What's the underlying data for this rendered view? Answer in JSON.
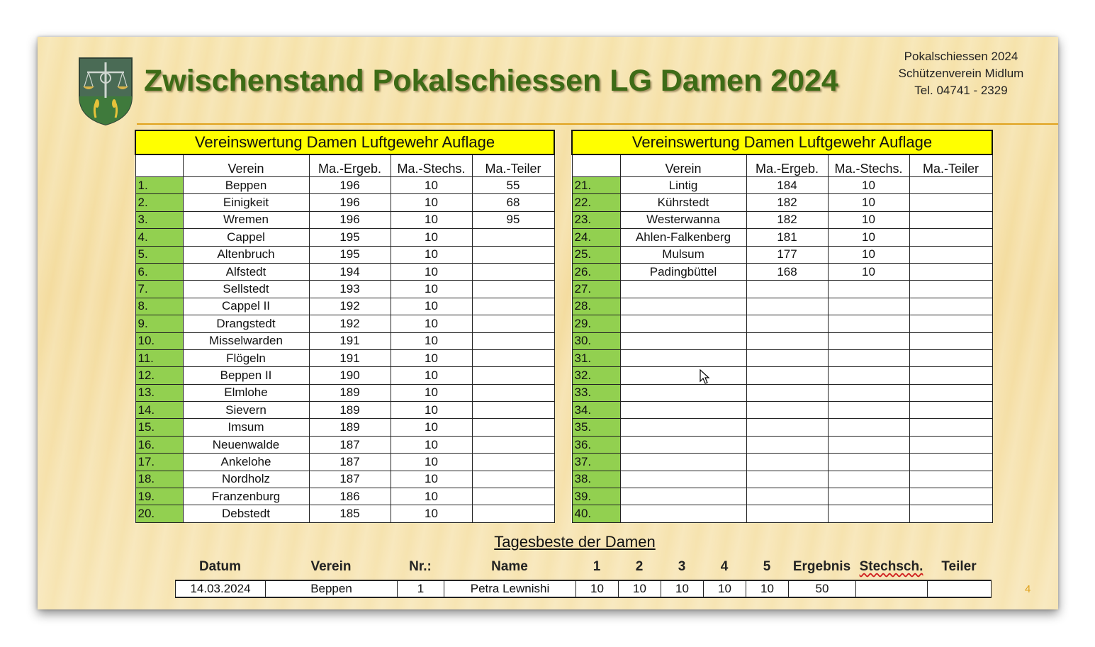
{
  "header": {
    "title": "Zwischenstand Pokalschiessen LG Damen 2024",
    "info_lines": [
      "Pokalschiessen 2024",
      "Schützenverein Midlum",
      "Tel. 04741 - 2329"
    ]
  },
  "table_left": {
    "title": "Vereinswertung Damen Luftgewehr Auflage",
    "columns": [
      "",
      "Verein",
      "Ma.-Ergeb.",
      "Ma.-Stechs.",
      "Ma.-Teiler"
    ],
    "rows": [
      [
        "1.",
        "Beppen",
        "196",
        "10",
        "55"
      ],
      [
        "2.",
        "Einigkeit",
        "196",
        "10",
        "68"
      ],
      [
        "3.",
        "Wremen",
        "196",
        "10",
        "95"
      ],
      [
        "4.",
        "Cappel",
        "195",
        "10",
        ""
      ],
      [
        "5.",
        "Altenbruch",
        "195",
        "10",
        ""
      ],
      [
        "6.",
        "Alfstedt",
        "194",
        "10",
        ""
      ],
      [
        "7.",
        "Sellstedt",
        "193",
        "10",
        ""
      ],
      [
        "8.",
        "Cappel II",
        "192",
        "10",
        ""
      ],
      [
        "9.",
        "Drangstedt",
        "192",
        "10",
        ""
      ],
      [
        "10.",
        "Misselwarden",
        "191",
        "10",
        ""
      ],
      [
        "11.",
        "Flögeln",
        "191",
        "10",
        ""
      ],
      [
        "12.",
        "Beppen II",
        "190",
        "10",
        ""
      ],
      [
        "13.",
        "Elmlohe",
        "189",
        "10",
        ""
      ],
      [
        "14.",
        "Sievern",
        "189",
        "10",
        ""
      ],
      [
        "15.",
        "Imsum",
        "189",
        "10",
        ""
      ],
      [
        "16.",
        "Neuenwalde",
        "187",
        "10",
        ""
      ],
      [
        "17.",
        "Ankelohe",
        "187",
        "10",
        ""
      ],
      [
        "18.",
        "Nordholz",
        "187",
        "10",
        ""
      ],
      [
        "19.",
        "Franzenburg",
        "186",
        "10",
        ""
      ],
      [
        "20.",
        "Debstedt",
        "185",
        "10",
        ""
      ]
    ]
  },
  "table_right": {
    "title": "Vereinswertung Damen Luftgewehr Auflage",
    "columns": [
      "",
      "Verein",
      "Ma.-Ergeb.",
      "Ma.-Stechs.",
      "Ma.-Teiler"
    ],
    "rows": [
      [
        "21.",
        "Lintig",
        "184",
        "10",
        ""
      ],
      [
        "22.",
        "Kührstedt",
        "182",
        "10",
        ""
      ],
      [
        "23.",
        "Westerwanna",
        "182",
        "10",
        ""
      ],
      [
        "24.",
        "Ahlen-Falkenberg",
        "181",
        "10",
        ""
      ],
      [
        "25.",
        "Mulsum",
        "177",
        "10",
        ""
      ],
      [
        "26.",
        "Padingbüttel",
        "168",
        "10",
        ""
      ],
      [
        "27.",
        "",
        "",
        "",
        ""
      ],
      [
        "28.",
        "",
        "",
        "",
        ""
      ],
      [
        "29.",
        "",
        "",
        "",
        ""
      ],
      [
        "30.",
        "",
        "",
        "",
        ""
      ],
      [
        "31.",
        "",
        "",
        "",
        ""
      ],
      [
        "32.",
        "",
        "",
        "",
        ""
      ],
      [
        "33.",
        "",
        "",
        "",
        ""
      ],
      [
        "34.",
        "",
        "",
        "",
        ""
      ],
      [
        "35.",
        "",
        "",
        "",
        ""
      ],
      [
        "36.",
        "",
        "",
        "",
        ""
      ],
      [
        "37.",
        "",
        "",
        "",
        ""
      ],
      [
        "38.",
        "",
        "",
        "",
        ""
      ],
      [
        "39.",
        "",
        "",
        "",
        ""
      ],
      [
        "40.",
        "",
        "",
        "",
        ""
      ]
    ]
  },
  "daily_best": {
    "title": "Tagesbeste der Damen",
    "columns": [
      "Datum",
      "Verein",
      "Nr.:",
      "Name",
      "1",
      "2",
      "3",
      "4",
      "5",
      "Ergebnis",
      "Stechsch.",
      "Teiler"
    ],
    "row": [
      "14.03.2024",
      "Beppen",
      "1",
      "Petra Lewnishi",
      "10",
      "10",
      "10",
      "10",
      "10",
      "50",
      "",
      ""
    ]
  },
  "page_number": "4",
  "icons": {
    "crest": "municipal-crest-icon",
    "cursor": "mouse-cursor-icon"
  },
  "colors": {
    "title": "#3d6b16",
    "header_fill": "#ffff00",
    "rank_fill": "#92d050",
    "accent": "#e0a21d"
  }
}
